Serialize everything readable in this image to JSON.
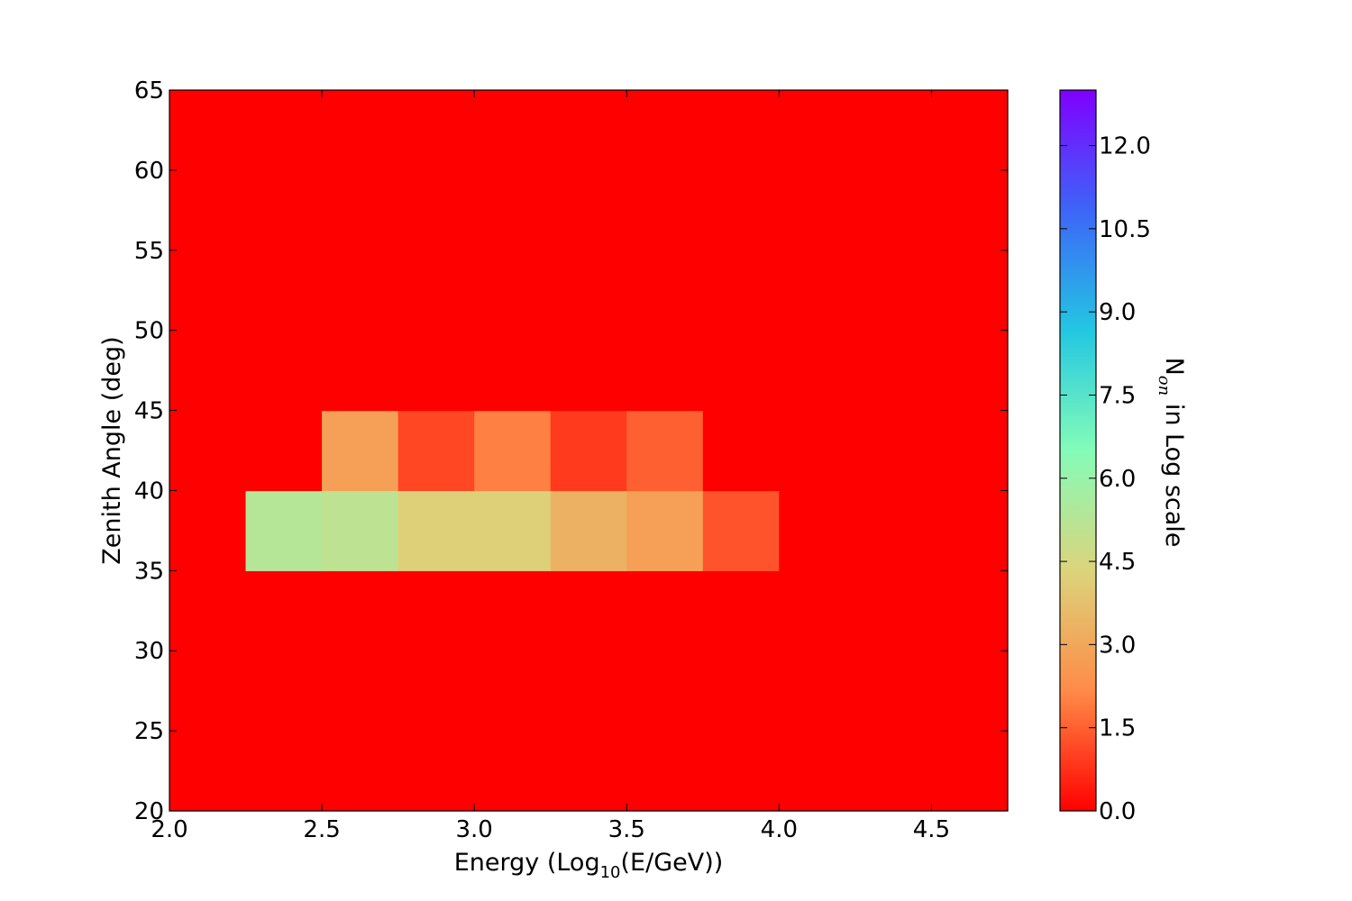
{
  "chart_data": {
    "type": "heatmap",
    "xlabel": {
      "pre": "Energy (Log",
      "sub": "10",
      "post": "(E/GeV))"
    },
    "ylabel": "Zenith Angle (deg)",
    "colorbar_label": {
      "pre": "N",
      "sub": "on",
      "post": " in Log scale"
    },
    "x_edges": [
      2.0,
      2.25,
      2.5,
      2.75,
      3.0,
      3.25,
      3.5,
      3.75,
      4.0,
      4.25,
      4.5,
      4.75
    ],
    "y_edges": [
      20,
      25,
      30,
      35,
      40,
      45,
      50,
      55,
      60,
      65
    ],
    "xlim": [
      2.0,
      4.75
    ],
    "ylim": [
      20,
      65
    ],
    "x_ticks": [
      "2.0",
      "2.5",
      "3.0",
      "3.5",
      "4.0",
      "4.5"
    ],
    "y_ticks": [
      "20",
      "25",
      "30",
      "35",
      "40",
      "45",
      "50",
      "55",
      "60",
      "65"
    ],
    "z": [
      [
        0,
        0,
        0,
        0,
        0,
        0,
        0,
        0,
        0,
        0,
        0
      ],
      [
        0,
        0,
        0,
        0,
        0,
        0,
        0,
        0,
        0,
        0,
        0
      ],
      [
        0,
        0,
        0,
        0,
        0,
        0,
        0,
        0,
        0,
        0,
        0
      ],
      [
        0,
        5.3,
        5.1,
        4.2,
        4.2,
        3.3,
        2.8,
        1.3,
        0,
        0,
        0
      ],
      [
        0,
        0,
        2.8,
        1.1,
        2.0,
        0.9,
        1.5,
        0,
        0,
        0,
        0
      ],
      [
        0,
        0,
        0,
        0,
        0,
        0,
        0,
        0,
        0,
        0,
        0
      ],
      [
        0,
        0,
        0,
        0,
        0,
        0,
        0,
        0,
        0,
        0,
        0
      ],
      [
        0,
        0,
        0,
        0,
        0,
        0,
        0,
        0,
        0,
        0,
        0
      ],
      [
        0,
        0,
        0,
        0,
        0,
        0,
        0,
        0,
        0,
        0,
        0
      ]
    ],
    "colorbar_range": [
      0,
      13.0
    ],
    "colorbar_ticks": [
      "0.0",
      "1.5",
      "3.0",
      "4.5",
      "6.0",
      "7.5",
      "9.0",
      "10.5",
      "12.0"
    ],
    "colormap": "rainbow_r",
    "colormap_stops": [
      "#ff0000",
      "#ff8b47",
      "#dcd47c",
      "#84fcb8",
      "#23c7e2",
      "#3d65f8",
      "#8000ff"
    ]
  }
}
